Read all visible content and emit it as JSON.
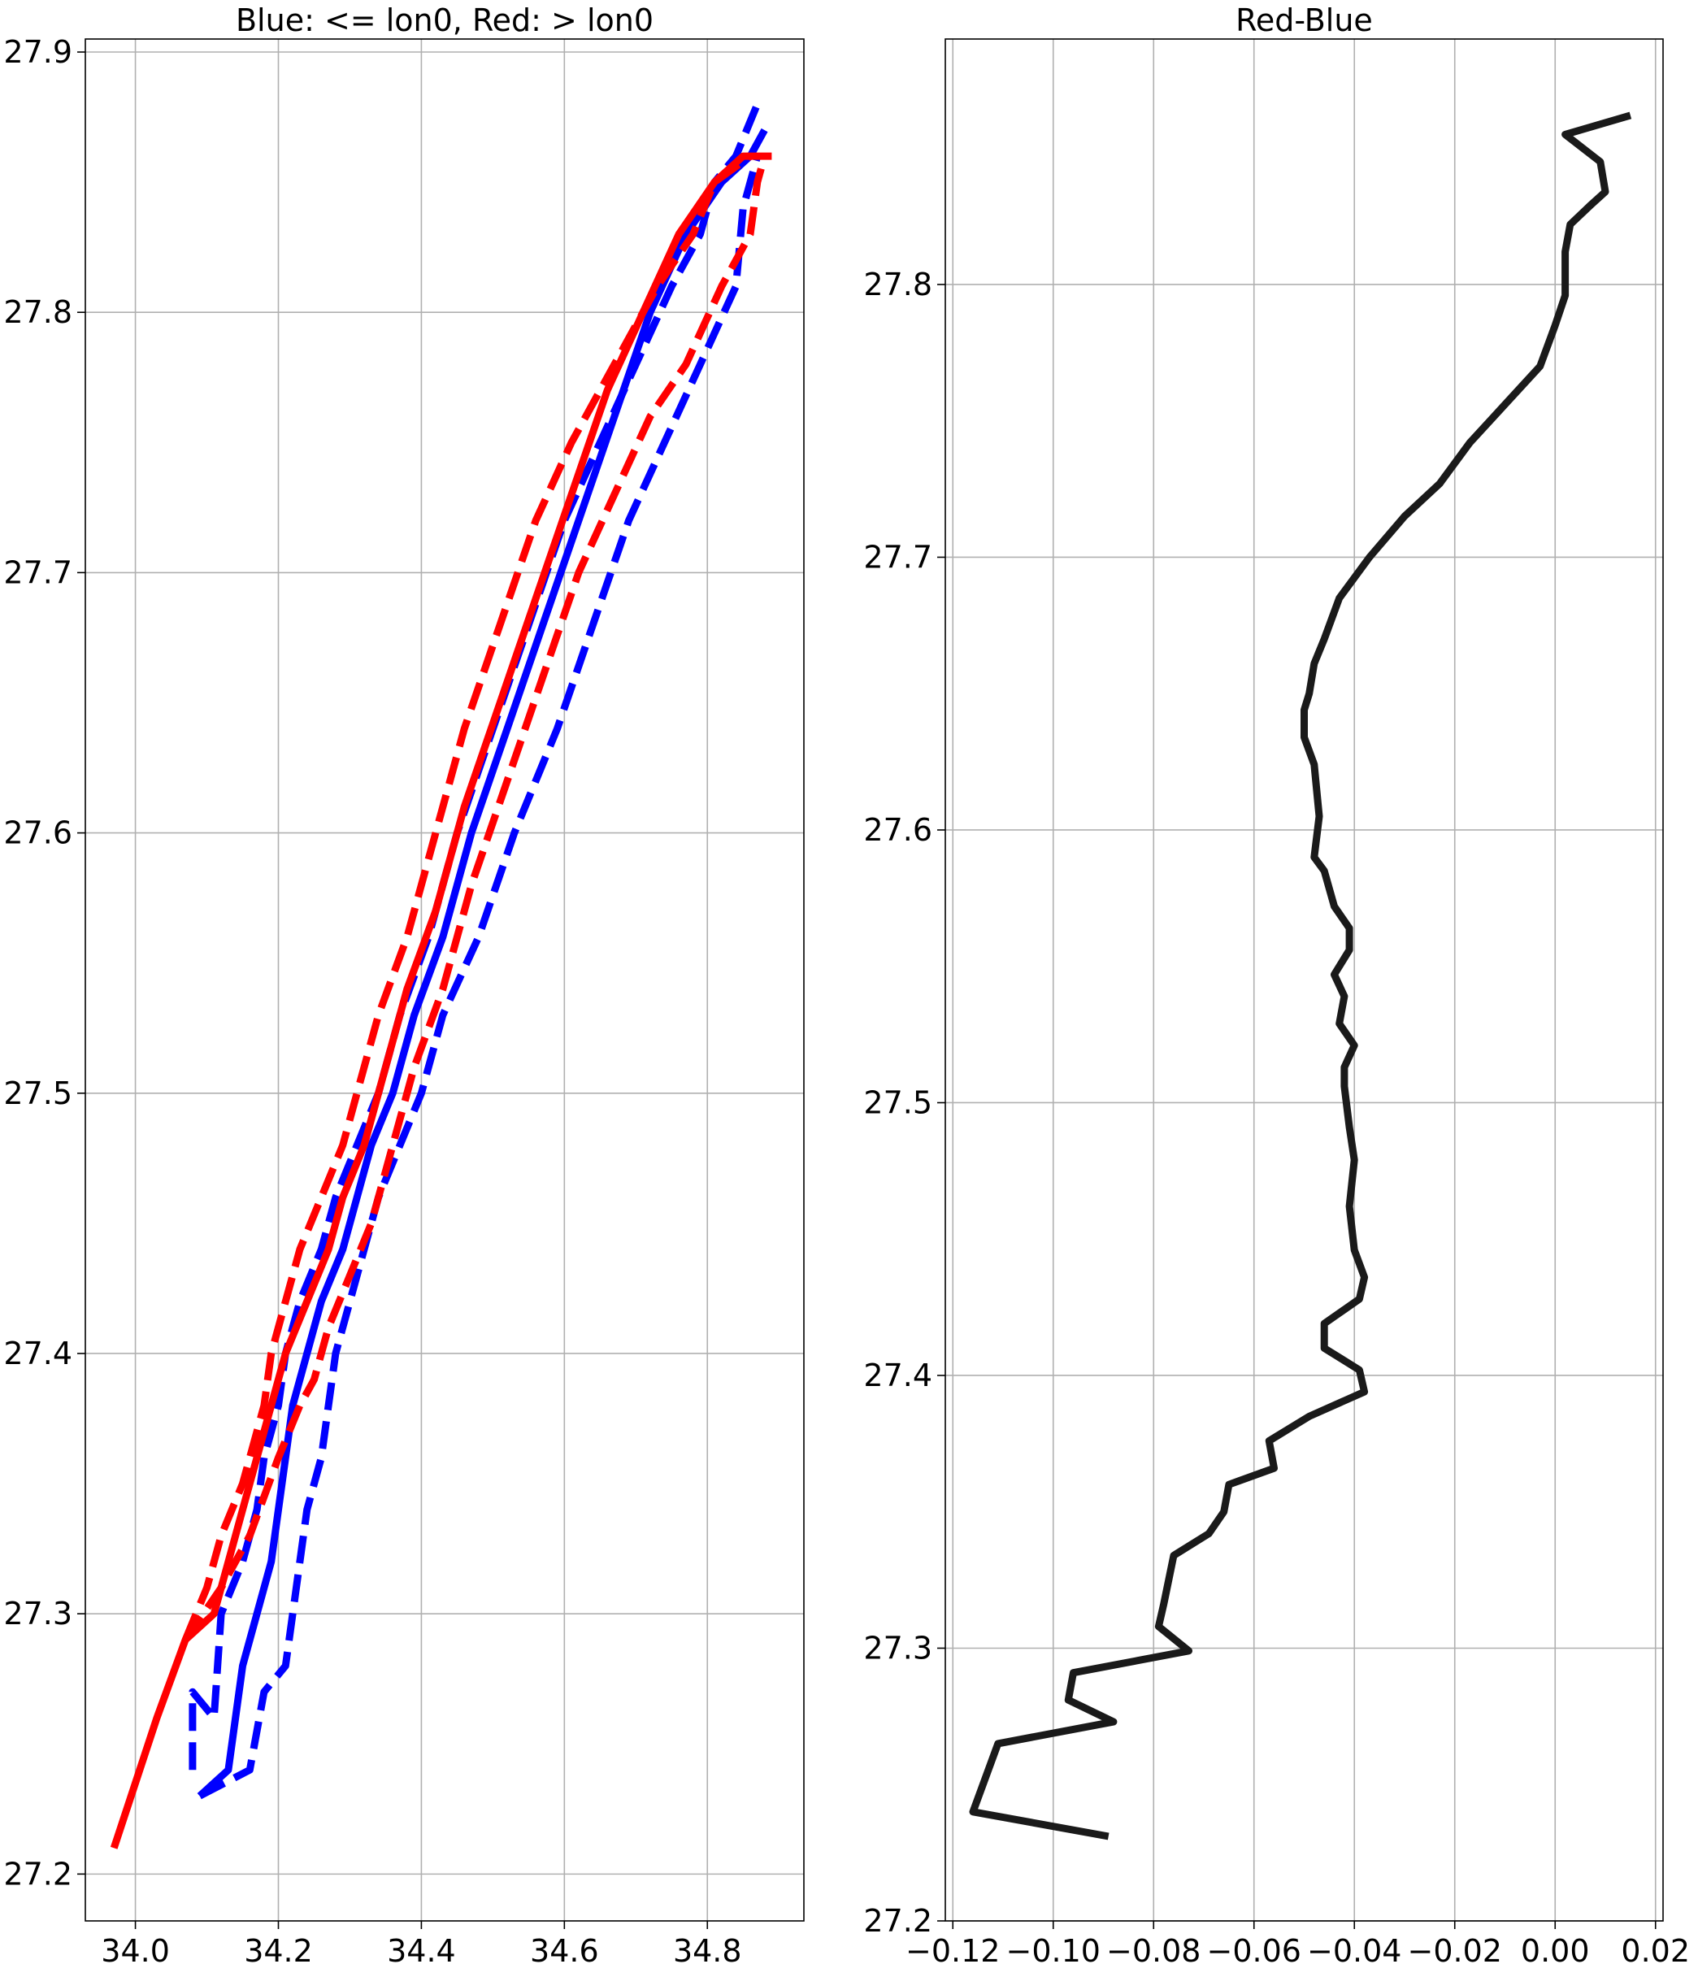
{
  "chart_data": [
    {
      "type": "line",
      "title": "Blue: <= lon0, Red: > lon0",
      "xlabel": "",
      "ylabel": "",
      "xlim": [
        33.93,
        34.935
      ],
      "ylim": [
        27.182,
        27.905
      ],
      "grid": true,
      "xticks": [
        "34.0",
        "34.2",
        "34.4",
        "34.6",
        "34.8"
      ],
      "xtick_values": [
        34.0,
        34.2,
        34.4,
        34.6,
        34.8
      ],
      "yticks": [
        "27.2",
        "27.3",
        "27.4",
        "27.5",
        "27.6",
        "27.7",
        "27.8",
        "27.9"
      ],
      "ytick_values": [
        27.2,
        27.3,
        27.4,
        27.5,
        27.6,
        27.7,
        27.8,
        27.9
      ],
      "series": [
        {
          "color": "#0000ff",
          "dash": "solid",
          "points": [
            [
              34.09,
              27.23
            ],
            [
              34.13,
              27.24
            ],
            [
              34.15,
              27.28
            ],
            [
              34.17,
              27.3
            ],
            [
              34.19,
              27.32
            ],
            [
              34.2,
              27.34
            ],
            [
              34.21,
              27.36
            ],
            [
              34.22,
              27.38
            ],
            [
              34.24,
              27.4
            ],
            [
              34.26,
              27.42
            ],
            [
              34.29,
              27.44
            ],
            [
              34.31,
              27.46
            ],
            [
              34.33,
              27.48
            ],
            [
              34.36,
              27.5
            ],
            [
              34.39,
              27.53
            ],
            [
              34.43,
              27.56
            ],
            [
              34.47,
              27.6
            ],
            [
              34.52,
              27.64
            ],
            [
              34.57,
              27.68
            ],
            [
              34.62,
              27.72
            ],
            [
              34.67,
              27.76
            ],
            [
              34.72,
              27.8
            ],
            [
              34.77,
              27.83
            ],
            [
              34.82,
              27.85
            ],
            [
              34.86,
              27.86
            ],
            [
              34.88,
              27.87
            ]
          ]
        },
        {
          "color": "#0000ff",
          "dash": "dashed",
          "points": [
            [
              34.09,
              27.23
            ],
            [
              34.16,
              27.24
            ],
            [
              34.18,
              27.27
            ],
            [
              34.21,
              27.28
            ],
            [
              34.22,
              27.3
            ],
            [
              34.23,
              27.32
            ],
            [
              34.24,
              27.34
            ],
            [
              34.26,
              27.36
            ],
            [
              34.27,
              27.38
            ],
            [
              34.28,
              27.4
            ],
            [
              34.3,
              27.42
            ],
            [
              34.32,
              27.44
            ],
            [
              34.34,
              27.46
            ],
            [
              34.37,
              27.48
            ],
            [
              34.4,
              27.5
            ],
            [
              34.43,
              27.53
            ],
            [
              34.48,
              27.56
            ],
            [
              34.53,
              27.6
            ],
            [
              34.59,
              27.64
            ],
            [
              34.64,
              27.68
            ],
            [
              34.69,
              27.72
            ],
            [
              34.74,
              27.75
            ],
            [
              34.79,
              27.78
            ],
            [
              34.84,
              27.81
            ],
            [
              34.85,
              27.84
            ],
            [
              34.87,
              27.86
            ]
          ]
        },
        {
          "color": "#0000ff",
          "dash": "dashed",
          "points": [
            [
              34.08,
              27.24
            ],
            [
              34.08,
              27.27
            ],
            [
              34.11,
              27.26
            ],
            [
              34.12,
              27.3
            ],
            [
              34.15,
              27.32
            ],
            [
              34.17,
              27.34
            ],
            [
              34.18,
              27.36
            ],
            [
              34.2,
              27.38
            ],
            [
              34.21,
              27.4
            ],
            [
              34.23,
              27.42
            ],
            [
              34.26,
              27.44
            ],
            [
              34.28,
              27.46
            ],
            [
              34.31,
              27.48
            ],
            [
              34.34,
              27.5
            ],
            [
              34.37,
              27.53
            ],
            [
              34.41,
              27.56
            ],
            [
              34.45,
              27.6
            ],
            [
              34.5,
              27.64
            ],
            [
              34.55,
              27.68
            ],
            [
              34.6,
              27.72
            ],
            [
              34.65,
              27.75
            ],
            [
              34.7,
              27.78
            ],
            [
              34.75,
              27.81
            ],
            [
              34.79,
              27.83
            ],
            [
              34.81,
              27.85
            ],
            [
              34.84,
              27.86
            ],
            [
              34.87,
              27.88
            ]
          ]
        },
        {
          "color": "#ff0000",
          "dash": "solid",
          "points": [
            [
              33.97,
              27.21
            ],
            [
              34.03,
              27.26
            ],
            [
              34.07,
              27.29
            ],
            [
              34.11,
              27.3
            ],
            [
              34.15,
              27.34
            ],
            [
              34.18,
              27.37
            ],
            [
              34.21,
              27.4
            ],
            [
              34.24,
              27.42
            ],
            [
              34.27,
              27.44
            ],
            [
              34.29,
              27.46
            ],
            [
              34.32,
              27.48
            ],
            [
              34.35,
              27.51
            ],
            [
              34.38,
              27.54
            ],
            [
              34.42,
              27.57
            ],
            [
              34.46,
              27.61
            ],
            [
              34.51,
              27.65
            ],
            [
              34.56,
              27.69
            ],
            [
              34.61,
              27.73
            ],
            [
              34.66,
              27.77
            ],
            [
              34.71,
              27.8
            ],
            [
              34.76,
              27.83
            ],
            [
              34.81,
              27.85
            ],
            [
              34.85,
              27.86
            ],
            [
              34.89,
              27.86
            ]
          ]
        },
        {
          "color": "#ff0000",
          "dash": "dashed",
          "points": [
            [
              34.07,
              27.29
            ],
            [
              34.1,
              27.31
            ],
            [
              34.12,
              27.33
            ],
            [
              34.15,
              27.35
            ],
            [
              34.18,
              27.38
            ],
            [
              34.19,
              27.4
            ],
            [
              34.21,
              27.42
            ],
            [
              34.23,
              27.44
            ],
            [
              34.26,
              27.46
            ],
            [
              34.29,
              27.48
            ],
            [
              34.31,
              27.5
            ],
            [
              34.34,
              27.53
            ],
            [
              34.38,
              27.56
            ],
            [
              34.42,
              27.6
            ],
            [
              34.46,
              27.64
            ],
            [
              34.51,
              27.68
            ],
            [
              34.56,
              27.72
            ],
            [
              34.61,
              27.75
            ],
            [
              34.67,
              27.78
            ],
            [
              34.73,
              27.81
            ],
            [
              34.78,
              27.83
            ],
            [
              34.81,
              27.85
            ],
            [
              34.86,
              27.86
            ]
          ]
        },
        {
          "color": "#ff0000",
          "dash": "dashed",
          "points": [
            [
              34.07,
              27.29
            ],
            [
              34.12,
              27.31
            ],
            [
              34.16,
              27.33
            ],
            [
              34.2,
              27.36
            ],
            [
              34.23,
              27.38
            ],
            [
              34.25,
              27.39
            ],
            [
              34.27,
              27.41
            ],
            [
              34.3,
              27.43
            ],
            [
              34.33,
              27.45
            ],
            [
              34.36,
              27.48
            ],
            [
              34.39,
              27.51
            ],
            [
              34.43,
              27.54
            ],
            [
              34.47,
              27.58
            ],
            [
              34.52,
              27.62
            ],
            [
              34.57,
              27.66
            ],
            [
              34.62,
              27.7
            ],
            [
              34.67,
              27.73
            ],
            [
              34.72,
              27.76
            ],
            [
              34.77,
              27.78
            ],
            [
              34.82,
              27.81
            ],
            [
              34.86,
              27.83
            ],
            [
              34.87,
              27.85
            ],
            [
              34.88,
              27.86
            ]
          ]
        }
      ]
    },
    {
      "type": "line",
      "title": "Red-Blue",
      "xlabel": "",
      "ylabel": "",
      "xlim": [
        -0.1215,
        0.0215
      ],
      "ylim": [
        27.2,
        27.89
      ],
      "grid": true,
      "xticks": [
        "−0.12",
        "−0.10",
        "−0.08",
        "−0.06",
        "−0.04",
        "−0.02",
        "0.00",
        "0.02"
      ],
      "xtick_values": [
        -0.12,
        -0.1,
        -0.08,
        -0.06,
        -0.04,
        -0.02,
        0.0,
        0.02
      ],
      "yticks": [
        "27.2",
        "27.3",
        "27.4",
        "27.5",
        "27.6",
        "27.7",
        "27.8"
      ],
      "ytick_values": [
        27.2,
        27.3,
        27.4,
        27.5,
        27.6,
        27.7,
        27.8
      ],
      "series": [
        {
          "color": "#1a1a1a",
          "dash": "solid",
          "points": [
            [
              -0.089,
              27.231
            ],
            [
              -0.116,
              27.24
            ],
            [
              -0.111,
              27.265
            ],
            [
              -0.088,
              27.273
            ],
            [
              -0.097,
              27.281
            ],
            [
              -0.096,
              27.291
            ],
            [
              -0.073,
              27.299
            ],
            [
              -0.079,
              27.308
            ],
            [
              -0.078,
              27.316
            ],
            [
              -0.076,
              27.334
            ],
            [
              -0.069,
              27.342
            ],
            [
              -0.066,
              27.35
            ],
            [
              -0.065,
              27.36
            ],
            [
              -0.056,
              27.366
            ],
            [
              -0.057,
              27.376
            ],
            [
              -0.049,
              27.385
            ],
            [
              -0.038,
              27.394
            ],
            [
              -0.039,
              27.402
            ],
            [
              -0.046,
              27.41
            ],
            [
              -0.046,
              27.419
            ],
            [
              -0.039,
              27.428
            ],
            [
              -0.038,
              27.436
            ],
            [
              -0.04,
              27.446
            ],
            [
              -0.041,
              27.462
            ],
            [
              -0.04,
              27.479
            ],
            [
              -0.041,
              27.491
            ],
            [
              -0.042,
              27.506
            ],
            [
              -0.042,
              27.513
            ],
            [
              -0.04,
              27.521
            ],
            [
              -0.043,
              27.529
            ],
            [
              -0.042,
              27.539
            ],
            [
              -0.044,
              27.547
            ],
            [
              -0.041,
              27.556
            ],
            [
              -0.041,
              27.564
            ],
            [
              -0.044,
              27.572
            ],
            [
              -0.046,
              27.585
            ],
            [
              -0.048,
              27.59
            ],
            [
              -0.047,
              27.605
            ],
            [
              -0.048,
              27.624
            ],
            [
              -0.05,
              27.634
            ],
            [
              -0.05,
              27.644
            ],
            [
              -0.049,
              27.65
            ],
            [
              -0.048,
              27.661
            ],
            [
              -0.046,
              27.67
            ],
            [
              -0.043,
              27.685
            ],
            [
              -0.037,
              27.7
            ],
            [
              -0.03,
              27.715
            ],
            [
              -0.023,
              27.727
            ],
            [
              -0.017,
              27.742
            ],
            [
              -0.01,
              27.756
            ],
            [
              -0.003,
              27.77
            ],
            [
              0.0,
              27.785
            ],
            [
              0.002,
              27.796
            ],
            [
              0.002,
              27.812
            ],
            [
              0.003,
              27.822
            ],
            [
              0.007,
              27.829
            ],
            [
              0.01,
              27.834
            ],
            [
              0.009,
              27.845
            ],
            [
              0.002,
              27.855
            ],
            [
              0.015,
              27.862
            ]
          ]
        }
      ]
    }
  ]
}
